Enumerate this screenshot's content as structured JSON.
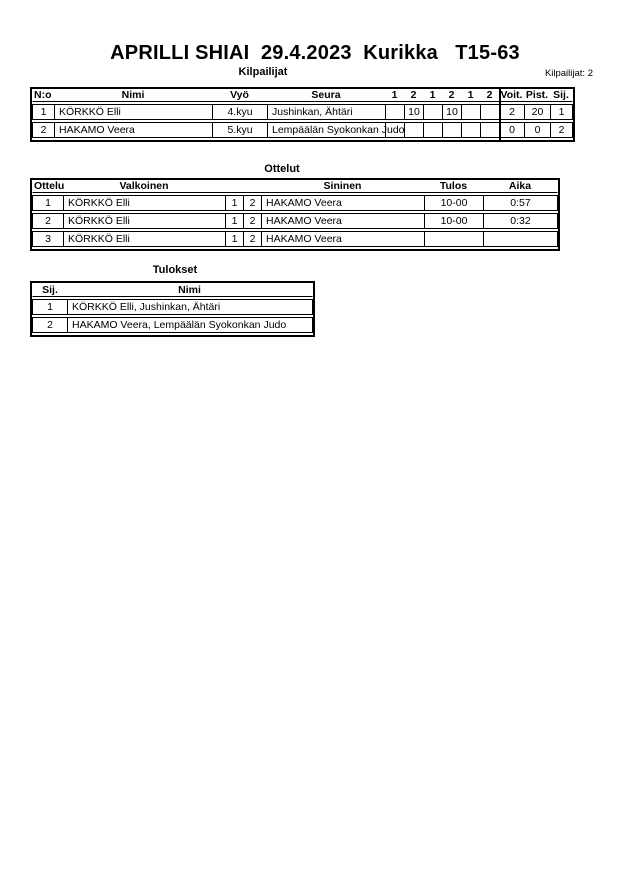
{
  "page": {
    "title": "APRILLI SHIAI  29.4.2023  Kurikka   T15-63",
    "competitor_count_label": "Kilpailijat: 2"
  },
  "competitors_section": {
    "title": "Kilpailijat",
    "table": {
      "headers": {
        "no": "N:o",
        "name": "Nimi",
        "belt": "Vyö",
        "club": "Seura",
        "rounds": [
          "1",
          "2",
          "1",
          "2",
          "1",
          "2"
        ],
        "wins": "Voit.",
        "points": "Pist.",
        "place": "Sij."
      },
      "rows": [
        {
          "no": "1",
          "name": "KÖRKKÖ Elli",
          "belt": "4.kyu",
          "club": "Jushinkan, Ähtäri",
          "rounds": [
            "",
            "10",
            "",
            "10",
            "",
            ""
          ],
          "wins": "2",
          "points": "20",
          "place": "1"
        },
        {
          "no": "2",
          "name": "HAKAMO Veera",
          "belt": "5.kyu",
          "club": "Lempäälän Syokonkan Judo",
          "rounds": [
            "",
            "",
            "",
            "",
            "",
            ""
          ],
          "wins": "0",
          "points": "0",
          "place": "2"
        }
      ]
    }
  },
  "matches_section": {
    "title": "Ottelut",
    "table": {
      "headers": {
        "match": "Ottelu",
        "white": "Valkoinen",
        "blue": "Sininen",
        "result": "Tulos",
        "time": "Aika"
      },
      "rows": [
        {
          "match": "1",
          "white": "KÖRKKÖ Elli",
          "white_no": "1",
          "blue_no": "2",
          "blue": "HAKAMO Veera",
          "result": "10-00",
          "time": "0:57"
        },
        {
          "match": "2",
          "white": "KÖRKKÖ Elli",
          "white_no": "1",
          "blue_no": "2",
          "blue": "HAKAMO Veera",
          "result": "10-00",
          "time": "0:32"
        },
        {
          "match": "3",
          "white": "KÖRKKÖ Elli",
          "white_no": "1",
          "blue_no": "2",
          "blue": "HAKAMO Veera",
          "result": "",
          "time": ""
        }
      ]
    }
  },
  "results_section": {
    "title": "Tulokset",
    "table": {
      "headers": {
        "place": "Sij.",
        "name": "Nimi"
      },
      "rows": [
        {
          "place": "1",
          "name": "KÖRKKÖ Elli, Jushinkan, Ähtäri"
        },
        {
          "place": "2",
          "name": "HAKAMO Veera, Lempäälän Syokonkan Judo"
        }
      ]
    }
  }
}
